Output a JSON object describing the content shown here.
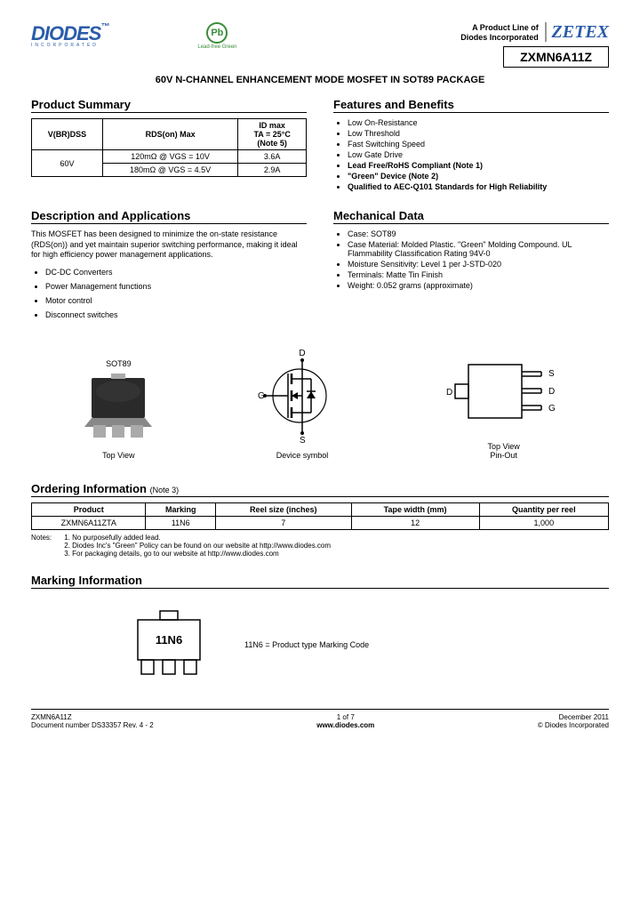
{
  "header": {
    "brand": "DIODES",
    "brand_sub": "INCORPORATED",
    "lead_free_symbol": "Pb",
    "lead_free_text": "Lead-free Green",
    "product_line_1": "A Product Line of",
    "product_line_2": "Diodes Incorporated",
    "zetex": "ZETEX",
    "part_number": "ZXMN6A11Z"
  },
  "title": "60V N-CHANNEL ENHANCEMENT MODE MOSFET IN SOT89 PACKAGE",
  "product_summary": {
    "heading": "Product Summary",
    "col1": "V(BR)DSS",
    "col2": "RDS(on) Max",
    "col3_line1": "ID max",
    "col3_line2": "TA = 25°C",
    "col3_line3": "(Note 5)",
    "vbr": "60V",
    "row1_rds": "120mΩ @ VGS = 10V",
    "row1_id": "3.6A",
    "row2_rds": "180mΩ @ VGS = 4.5V",
    "row2_id": "2.9A"
  },
  "features": {
    "heading": "Features and Benefits",
    "items": [
      {
        "text": "Low On-Resistance",
        "bold": false
      },
      {
        "text": "Low Threshold",
        "bold": false
      },
      {
        "text": "Fast Switching Speed",
        "bold": false
      },
      {
        "text": "Low Gate Drive",
        "bold": false
      },
      {
        "text": "Lead Free/RoHS Compliant (Note 1)",
        "bold": true
      },
      {
        "text": "\"Green\" Device (Note 2)",
        "bold": true
      },
      {
        "text": "Qualified to AEC-Q101 Standards for High Reliability",
        "bold": true
      }
    ]
  },
  "description": {
    "heading": "Description and Applications",
    "text": "This MOSFET has been designed to minimize the on-state resistance (RDS(on)) and yet maintain superior switching performance, making it ideal for high efficiency power management applications.",
    "items": [
      "DC-DC Converters",
      "Power Management functions",
      "Motor control",
      "Disconnect switches"
    ]
  },
  "mechanical": {
    "heading": "Mechanical Data",
    "items": [
      "Case: SOT89",
      "Case Material: Molded Plastic. \"Green\" Molding Compound. UL Flammability Classification Rating 94V-0",
      "Moisture Sensitivity: Level 1 per J-STD-020",
      "Terminals: Matte Tin Finish",
      "Weight: 0.052 grams (approximate)"
    ]
  },
  "diagrams": {
    "sot89_top": "SOT89",
    "sot89_label": "Top View",
    "symbol_d": "D",
    "symbol_g": "G",
    "symbol_s": "S",
    "symbol_label": "Device symbol",
    "pinout_s": "S",
    "pinout_d": "D",
    "pinout_g": "G",
    "pinout_label1": "Top View",
    "pinout_label2": "Pin-Out"
  },
  "ordering": {
    "heading": "Ordering Information",
    "heading_note": "(Note 3)",
    "cols": [
      "Product",
      "Marking",
      "Reel size (inches)",
      "Tape width (mm)",
      "Quantity per reel"
    ],
    "row": [
      "ZXMN6A11ZTA",
      "11N6",
      "7",
      "12",
      "1,000"
    ],
    "notes_label": "Notes:",
    "notes": [
      "1. No purposefully added lead.",
      "2. Diodes Inc's \"Green\" Policy can be found on our website at http://www.diodes.com",
      "3. For packaging details, go to our website at http://www.diodes.com"
    ]
  },
  "marking": {
    "heading": "Marking Information",
    "code": "11N6",
    "desc": "11N6 = Product type Marking Code"
  },
  "footer": {
    "part": "ZXMN6A11Z",
    "doc": "Document number DS33357 Rev. 4 - 2",
    "page": "1 of 7",
    "url": "www.diodes.com",
    "date": "December 2011",
    "copyright": "© Diodes Incorporated"
  }
}
